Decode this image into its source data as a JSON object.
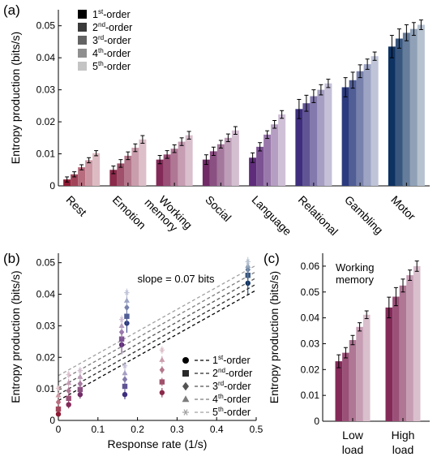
{
  "chart_data": [
    {
      "panel": "(a)",
      "type": "bar",
      "ylabel": "Entropy production (bits/s)",
      "ylim": [
        0,
        0.055
      ],
      "yticks": [
        "0",
        "0.01",
        "0.02",
        "0.03",
        "0.04",
        "0.05"
      ],
      "categories": [
        "Rest",
        "Emotion",
        "Working memory",
        "Social",
        "Language",
        "Relational",
        "Gambling",
        "Motor"
      ],
      "category_lines": [
        [
          "Rest"
        ],
        [
          "Emotion"
        ],
        [
          "Working",
          "memory"
        ],
        [
          "Social"
        ],
        [
          "Language"
        ],
        [
          "Relational"
        ],
        [
          "Gambling"
        ],
        [
          "Motor"
        ]
      ],
      "legend": [
        {
          "ord": "1",
          "sup": "st",
          "rest": "-order"
        },
        {
          "ord": "2",
          "sup": "nd",
          "rest": "-order"
        },
        {
          "ord": "3",
          "sup": "rd",
          "rest": "-order"
        },
        {
          "ord": "4",
          "sup": "th",
          "rest": "-order"
        },
        {
          "ord": "5",
          "sup": "th",
          "rest": "-order"
        }
      ],
      "legend_swatches": [
        "#000000",
        "#3a3a3a",
        "#636363",
        "#8f8f8f",
        "#c4c4c4"
      ],
      "group_colors": [
        "#8e1b35",
        "#8b2a4a",
        "#842a59",
        "#712a66",
        "#5f2c7b",
        "#3e2e7d",
        "#2b3a7e",
        "#0e3262"
      ],
      "values": [
        [
          0.002,
          0.0036,
          0.0058,
          0.008,
          0.0102
        ],
        [
          0.005,
          0.007,
          0.0094,
          0.0119,
          0.0145
        ],
        [
          0.0082,
          0.0098,
          0.0116,
          0.0138,
          0.0158
        ],
        [
          0.0082,
          0.0108,
          0.013,
          0.015,
          0.0173
        ],
        [
          0.0088,
          0.0122,
          0.016,
          0.0192,
          0.0223
        ],
        [
          0.024,
          0.0258,
          0.028,
          0.03,
          0.032
        ],
        [
          0.0308,
          0.033,
          0.0358,
          0.038,
          0.0405
        ],
        [
          0.0435,
          0.046,
          0.0478,
          0.049,
          0.0503
        ]
      ],
      "errors": [
        [
          0.0008,
          0.0008,
          0.0008,
          0.0008,
          0.0008
        ],
        [
          0.0012,
          0.0012,
          0.0012,
          0.0012,
          0.0012
        ],
        [
          0.0013,
          0.0012,
          0.0012,
          0.0012,
          0.0012
        ],
        [
          0.0015,
          0.0013,
          0.0012,
          0.0012,
          0.0012
        ],
        [
          0.0015,
          0.0013,
          0.0012,
          0.0012,
          0.0012
        ],
        [
          0.003,
          0.0025,
          0.002,
          0.0016,
          0.0013
        ],
        [
          0.003,
          0.0025,
          0.002,
          0.0016,
          0.0013
        ],
        [
          0.0035,
          0.003,
          0.0025,
          0.002,
          0.0015
        ]
      ]
    },
    {
      "panel": "(b)",
      "type": "scatter",
      "xlabel": "Response rate (1/s)",
      "ylabel": "Entropy production (bits/s)",
      "xlim": [
        0,
        0.5
      ],
      "ylim": [
        0,
        0.053
      ],
      "xticks": [
        "0",
        "0.1",
        "0.2",
        "0.3",
        "0.4",
        "0.5"
      ],
      "yticks": [
        "0",
        "0.01",
        "0.02",
        "0.03",
        "0.04",
        "0.05"
      ],
      "annotation": "slope = 0.07 bits",
      "slope": 0.07,
      "intercepts": [
        0.0063,
        0.0082,
        0.0102,
        0.0122,
        0.0142
      ],
      "x": [
        0.0,
        0.026,
        0.055,
        0.168,
        0.262,
        0.16,
        0.173,
        0.479
      ],
      "point_colors": [
        "#8e1b35",
        "#842a59",
        "#712a66",
        "#3e2e7d",
        "#8b2a4a",
        "#5f2c7b",
        "#2b3a7e",
        "#0e3262"
      ],
      "point_values_index": [
        0,
        1,
        2,
        3,
        4,
        5,
        6,
        7
      ],
      "legend": [
        {
          "marker": "circle",
          "ord": "1",
          "sup": "st",
          "rest": "-order"
        },
        {
          "marker": "square",
          "ord": "2",
          "sup": "nd",
          "rest": "-order"
        },
        {
          "marker": "diamond",
          "ord": "3",
          "sup": "rd",
          "rest": "-order"
        },
        {
          "marker": "triangle",
          "ord": "4",
          "sup": "th",
          "rest": "-order"
        },
        {
          "marker": "asterisk",
          "ord": "5",
          "sup": "th",
          "rest": "-order"
        }
      ]
    },
    {
      "panel": "(c)",
      "type": "bar",
      "ylabel": "Entropy production (bits/s)",
      "title_lines": [
        "Working",
        "memory"
      ],
      "ylim": [
        0,
        0.065
      ],
      "yticks": [
        "0",
        "0.01",
        "0.02",
        "0.03",
        "0.04",
        "0.05",
        "0.06"
      ],
      "categories": [
        "Low load",
        "High load"
      ],
      "category_lines": [
        [
          "Low",
          "load"
        ],
        [
          "High",
          "load"
        ]
      ],
      "base_color": "#842a59",
      "values": [
        [
          0.0232,
          0.0265,
          0.0314,
          0.0365,
          0.0412
        ],
        [
          0.044,
          0.0482,
          0.0525,
          0.0565,
          0.06
        ]
      ],
      "errors": [
        [
          0.0025,
          0.002,
          0.0018,
          0.0016,
          0.0015
        ],
        [
          0.004,
          0.0035,
          0.0025,
          0.002,
          0.002
        ]
      ]
    }
  ]
}
